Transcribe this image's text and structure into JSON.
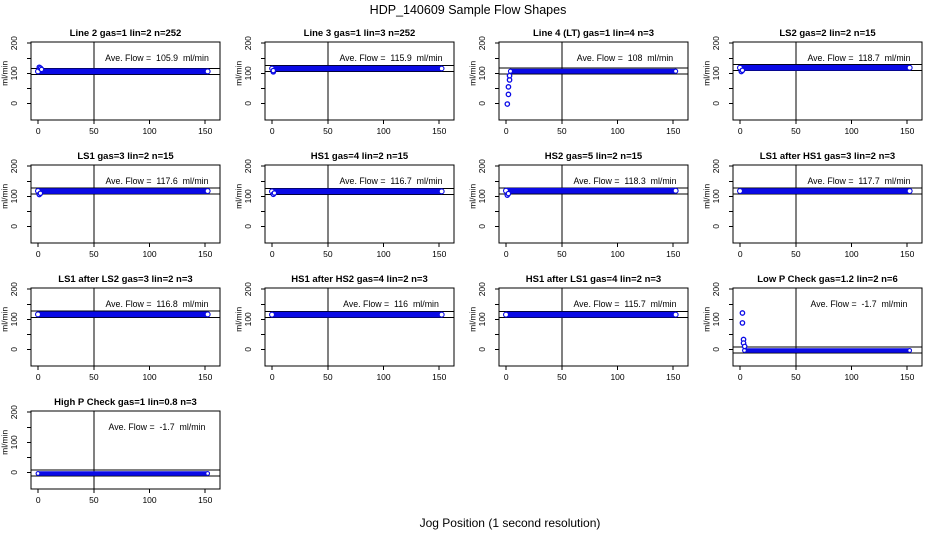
{
  "chart_data": {
    "type": "scatter",
    "title": "HDP_140609  Sample Flow Shapes",
    "xlabel": "Jog Position (1 second resolution)",
    "ylabel": "ml/min",
    "layout": "4x4 grid, 13 panels",
    "grid": false,
    "xlim": [
      0,
      155
    ],
    "ylim": [
      -45,
      205
    ],
    "x_ticks": [
      0,
      50,
      100,
      150
    ],
    "y_ticks": [
      0,
      50,
      100,
      150,
      200
    ],
    "y_labeled_ticks": [
      0,
      100,
      200
    ],
    "vline_x": 50,
    "ref_line_offset_mlmin": 10,
    "point_color": "#0a0ae6",
    "axis_color": "#000000",
    "panels": [
      {
        "title": "Line 2 gas=1 lin=2 n=252",
        "gas": "1",
        "lin": "2",
        "n": 252,
        "ave_flow": 105.9,
        "ave_label": "Ave. Flow =  105.9  ml/min",
        "band_x": [
          0,
          152
        ],
        "band_y": [
          97,
          116
        ],
        "transient": [
          [
            1,
            120
          ],
          [
            2,
            117
          ],
          [
            3,
            113
          ]
        ]
      },
      {
        "title": "Line 3 gas=1 lin=3 n=252",
        "gas": "1",
        "lin": "3",
        "n": 252,
        "ave_flow": 115.9,
        "ave_label": "Ave. Flow =  115.9  ml/min",
        "band_x": [
          0,
          152
        ],
        "band_y": [
          107,
          125
        ],
        "transient": [
          [
            1,
            105
          ],
          [
            1,
            109
          ]
        ]
      },
      {
        "title": "Line 4 (LT) gas=1 lin=4 n=3",
        "gas": "1",
        "lin": "4",
        "n": 3,
        "ave_flow": 108,
        "ave_label": "Ave. Flow =  108  ml/min",
        "band_x": [
          4,
          152
        ],
        "band_y": [
          99,
          115
        ],
        "transient": [
          [
            1,
            -2
          ],
          [
            2,
            30
          ],
          [
            2,
            55
          ],
          [
            3,
            78
          ],
          [
            3,
            92
          ]
        ]
      },
      {
        "title": "LS2 gas=2 lin=2 n=15",
        "gas": "2",
        "lin": "2",
        "n": 15,
        "ave_flow": 118.7,
        "ave_label": "Ave. Flow =  118.7  ml/min",
        "band_x": [
          0,
          152
        ],
        "band_y": [
          109,
          128
        ],
        "transient": [
          [
            1,
            106
          ],
          [
            2,
            110
          ]
        ]
      },
      {
        "title": "LS1 gas=3 lin=2 n=15",
        "gas": "3",
        "lin": "2",
        "n": 15,
        "ave_flow": 117.6,
        "ave_label": "Ave. Flow =  117.6  ml/min",
        "band_x": [
          0,
          152
        ],
        "band_y": [
          108,
          127
        ],
        "transient": [
          [
            1,
            106
          ],
          [
            2,
            110
          ]
        ]
      },
      {
        "title": "HS1 gas=4 lin=2 n=15",
        "gas": "4",
        "lin": "2",
        "n": 15,
        "ave_flow": 116.7,
        "ave_label": "Ave. Flow =  116.7  ml/min",
        "band_x": [
          0,
          152
        ],
        "band_y": [
          107,
          126
        ],
        "transient": [
          [
            1,
            107
          ],
          [
            2,
            111
          ]
        ]
      },
      {
        "title": "HS2 gas=5 lin=2 n=15",
        "gas": "5",
        "lin": "2",
        "n": 15,
        "ave_flow": 118.3,
        "ave_label": "Ave. Flow =  118.3  ml/min",
        "band_x": [
          0,
          152
        ],
        "band_y": [
          109,
          128
        ],
        "transient": [
          [
            1,
            104
          ],
          [
            2,
            109
          ]
        ]
      },
      {
        "title": "LS1 after HS1 gas=3 lin=2 n=3",
        "gas": "3",
        "lin": "2",
        "n": 3,
        "ave_flow": 117.7,
        "ave_label": "Ave. Flow =  117.7  ml/min",
        "band_x": [
          0,
          152
        ],
        "band_y": [
          108,
          127
        ],
        "transient": []
      },
      {
        "title": "LS1 after LS2 gas=3 lin=2 n=3",
        "gas": "3",
        "lin": "2",
        "n": 3,
        "ave_flow": 116.8,
        "ave_label": "Ave. Flow =  116.8  ml/min",
        "band_x": [
          0,
          152
        ],
        "band_y": [
          107,
          126
        ],
        "transient": []
      },
      {
        "title": "HS1 after HS2 gas=4 lin=2 n=3",
        "gas": "4",
        "lin": "2",
        "n": 3,
        "ave_flow": 116,
        "ave_label": "Ave. Flow =  116  ml/min",
        "band_x": [
          0,
          152
        ],
        "band_y": [
          106,
          125
        ],
        "transient": []
      },
      {
        "title": "HS1 after LS1 gas=4 lin=2 n=3",
        "gas": "4",
        "lin": "2",
        "n": 3,
        "ave_flow": 115.7,
        "ave_label": "Ave. Flow =  115.7  ml/min",
        "band_x": [
          0,
          152
        ],
        "band_y": [
          106,
          125
        ],
        "transient": []
      },
      {
        "title": "Low P Check gas=1.2 lin=2 n=6",
        "gas": "1.2",
        "lin": "2",
        "n": 6,
        "ave_flow": -1.7,
        "ave_label": "Ave. Flow =  -1.7  ml/min",
        "band_x": [
          4,
          152
        ],
        "band_y": [
          -10,
          4
        ],
        "transient": [
          [
            2,
            121
          ],
          [
            2,
            88
          ],
          [
            3,
            33
          ],
          [
            3,
            21
          ],
          [
            4,
            10
          ]
        ]
      },
      {
        "title": "High P Check gas=1 lin=0.8 n=3",
        "gas": "1",
        "lin": "0.8",
        "n": 3,
        "ave_flow": -1.7,
        "ave_label": "Ave. Flow =  -1.7  ml/min",
        "band_x": [
          0,
          152
        ],
        "band_y": [
          -10,
          4
        ],
        "transient": []
      }
    ]
  }
}
